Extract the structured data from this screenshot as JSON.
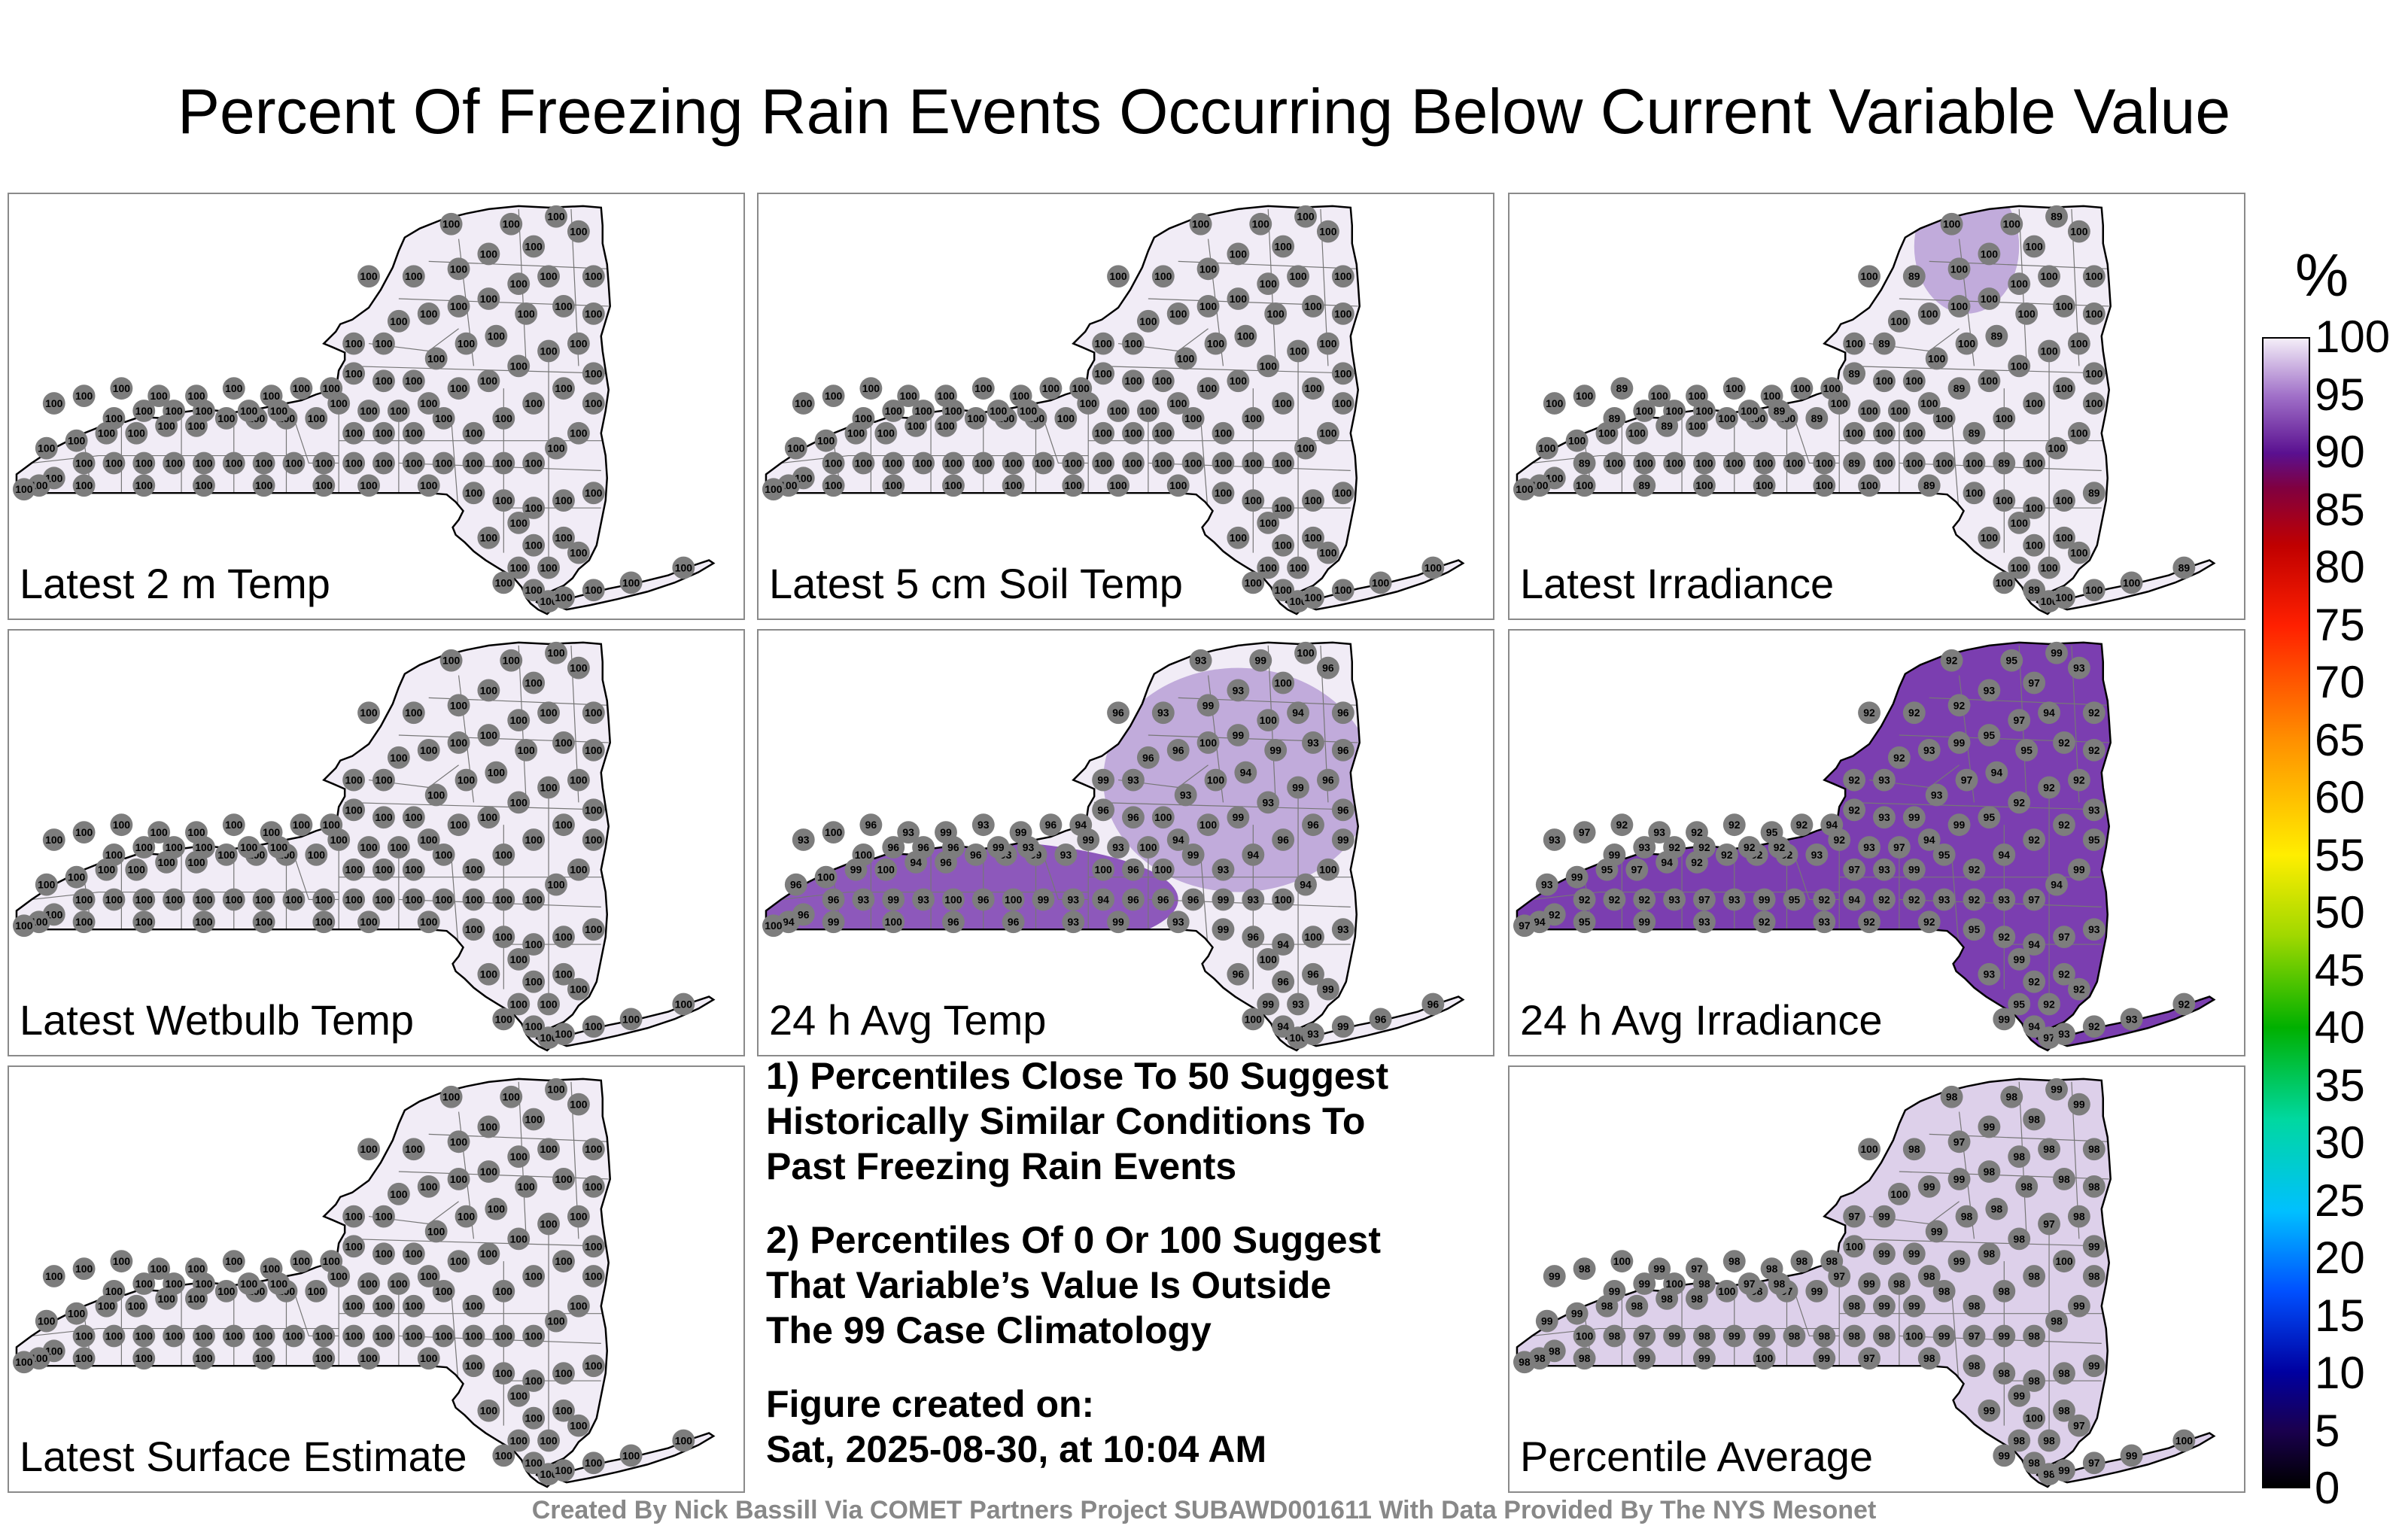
{
  "title": "Percent Of Freezing Rain Events Occurring Below Current Variable Value",
  "footer": "Created By Nick Bassill Via COMET Partners Project SUBAWD001611 With Data Provided By The NYS Mesonet",
  "notes": {
    "note1": "1) Percentiles Close To 50 Suggest\nHistorically Similar Conditions To\nPast Freezing Rain Events",
    "note2": "2) Percentiles Of 0 Or 100 Suggest\nThat Variable’s Value Is Outside\nThe 99 Case Climatology",
    "note3": "Figure created on:\nSat, 2025-08-30, at 10:04 AM"
  },
  "colorbar": {
    "unit": "%",
    "ticks": [
      "100",
      "95",
      "90",
      "85",
      "80",
      "75",
      "70",
      "65",
      "60",
      "55",
      "50",
      "45",
      "40",
      "35",
      "30",
      "25",
      "20",
      "15",
      "10",
      "5",
      "0"
    ],
    "stops": [
      {
        "v": 0,
        "c": "#000000"
      },
      {
        "v": 5,
        "c": "#1a0050"
      },
      {
        "v": 10,
        "c": "#0000a0"
      },
      {
        "v": 17,
        "c": "#0050ff"
      },
      {
        "v": 24,
        "c": "#00c0ff"
      },
      {
        "v": 32,
        "c": "#00d8a0"
      },
      {
        "v": 40,
        "c": "#00b000"
      },
      {
        "v": 48,
        "c": "#a0d800"
      },
      {
        "v": 55,
        "c": "#ffee00"
      },
      {
        "v": 65,
        "c": "#ff9000"
      },
      {
        "v": 75,
        "c": "#ff2000"
      },
      {
        "v": 82,
        "c": "#c00000"
      },
      {
        "v": 87,
        "c": "#800040"
      },
      {
        "v": 90,
        "c": "#5a1090"
      },
      {
        "v": 95,
        "c": "#a070c8"
      },
      {
        "v": 100,
        "c": "#f4eef8"
      }
    ]
  },
  "map_colors": {
    "fill_100": "#f1ecf6",
    "fill_98": "#ddd0ea",
    "fill_95": "#b9a0d6",
    "fill_92": "#7b3eb0",
    "station": "#7d7d7d",
    "outline": "#000000",
    "county": "#777777"
  },
  "panels": [
    {
      "id": "latest-2m-temp",
      "label": "Latest 2 m Temp",
      "fill": "fill_100",
      "values": [
        "100"
      ]
    },
    {
      "id": "latest-5cm-soil-temp",
      "label": "Latest 5 cm Soil Temp",
      "fill": "fill_100",
      "values": [
        "100"
      ]
    },
    {
      "id": "latest-irradiance",
      "label": "Latest Irradiance",
      "fill": "fill_100",
      "values": [
        "100",
        "100",
        "89",
        "100",
        "100",
        "100"
      ],
      "blobs": [
        {
          "fill": "fill_95",
          "at": "north-east"
        }
      ]
    },
    {
      "id": "latest-wetbulb-temp",
      "label": "Latest Wetbulb Temp",
      "fill": "fill_100",
      "values": [
        "100"
      ]
    },
    {
      "id": "24h-avg-temp",
      "label": "24 h Avg Temp",
      "fill": "fill_100",
      "values": [
        "93",
        "96",
        "94",
        "99",
        "100",
        "96",
        "93",
        "99",
        "96",
        "100"
      ],
      "blobs": [
        {
          "fill": "fill_92",
          "at": "west"
        },
        {
          "fill": "fill_95",
          "at": "center"
        }
      ]
    },
    {
      "id": "24h-avg-irradiance",
      "label": "24 h Avg Irradiance",
      "fill": "fill_92",
      "values": [
        "92",
        "93",
        "94",
        "92",
        "99",
        "92",
        "93",
        "95",
        "92",
        "97"
      ]
    },
    {
      "id": "latest-surface-estimate",
      "label": "Latest Surface Estimate",
      "fill": "fill_100",
      "values": [
        "100"
      ]
    },
    {
      "id": "percentile-average",
      "label": "Percentile Average",
      "fill": "fill_98",
      "values": [
        "98",
        "99",
        "98",
        "97",
        "99",
        "98",
        "99",
        "98",
        "100",
        "98"
      ]
    }
  ]
}
